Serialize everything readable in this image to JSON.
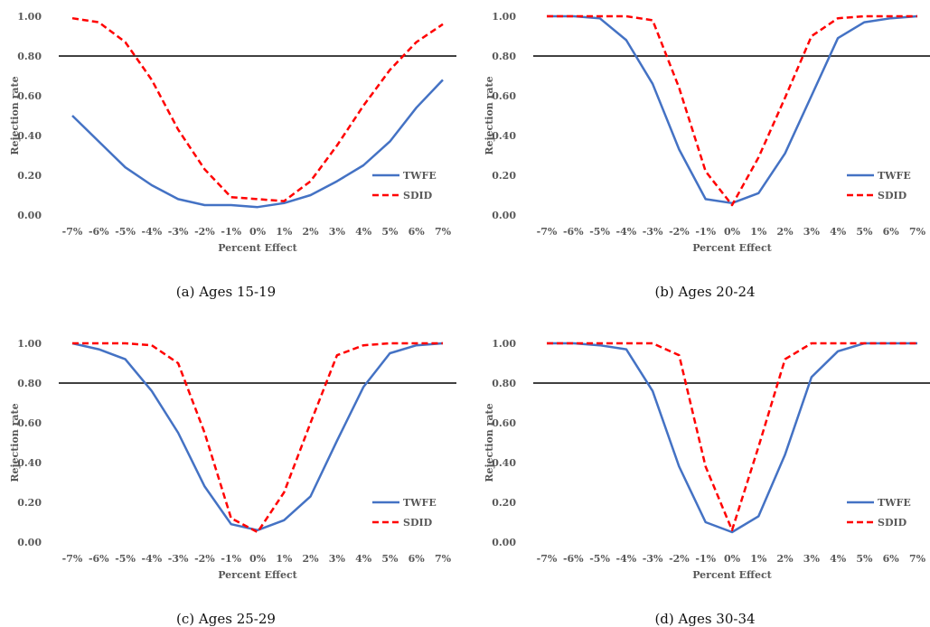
{
  "colors": {
    "twfe": "#4472C4",
    "sdid": "#FF0000",
    "threshold": "#000000",
    "tick_text": "#595959"
  },
  "chart_data": [
    {
      "type": "line",
      "caption": "(a) Ages 15-19",
      "xlabel": "Percent Effect",
      "ylabel": "Rejection rate",
      "ylim": [
        0,
        1.0
      ],
      "y_ticks": [
        "0.00",
        "0.20",
        "0.40",
        "0.60",
        "0.80",
        "1.00"
      ],
      "categories": [
        "-7%",
        "-6%",
        "-5%",
        "-4%",
        "-3%",
        "-2%",
        "-1%",
        "0%",
        "1%",
        "2%",
        "3%",
        "4%",
        "5%",
        "6%",
        "7%"
      ],
      "threshold": [
        0.8,
        0.8
      ],
      "legend_position": "right",
      "series": [
        {
          "name": "TWFE",
          "style": "solid",
          "values": [
            0.5,
            0.37,
            0.24,
            0.15,
            0.08,
            0.05,
            0.05,
            0.04,
            0.06,
            0.1,
            0.17,
            0.25,
            0.37,
            0.54,
            0.68
          ]
        },
        {
          "name": "SDID",
          "style": "dashed",
          "values": [
            0.99,
            0.97,
            0.87,
            0.68,
            0.43,
            0.23,
            0.09,
            0.08,
            0.07,
            0.17,
            0.35,
            0.55,
            0.73,
            0.87,
            0.96
          ]
        }
      ]
    },
    {
      "type": "line",
      "caption": "(b) Ages 20-24",
      "xlabel": "Percent Effect",
      "ylabel": "Rejection rate",
      "ylim": [
        0,
        1.0
      ],
      "y_ticks": [
        "0.00",
        "0.20",
        "0.40",
        "0.60",
        "0.80",
        "1.00"
      ],
      "categories": [
        "-7%",
        "-6%",
        "-5%",
        "-4%",
        "-3%",
        "-2%",
        "-1%",
        "0%",
        "1%",
        "2%",
        "3%",
        "4%",
        "5%",
        "6%",
        "7%"
      ],
      "threshold": [
        0.8,
        0.8
      ],
      "legend_position": "right",
      "series": [
        {
          "name": "TWFE",
          "style": "solid",
          "values": [
            1.0,
            1.0,
            0.99,
            0.88,
            0.66,
            0.33,
            0.08,
            0.06,
            0.11,
            0.31,
            0.6,
            0.89,
            0.97,
            0.99,
            1.0
          ]
        },
        {
          "name": "SDID",
          "style": "dashed",
          "values": [
            1.0,
            1.0,
            1.0,
            1.0,
            0.98,
            0.64,
            0.22,
            0.05,
            0.29,
            0.59,
            0.9,
            0.99,
            1.0,
            1.0,
            1.0
          ]
        }
      ]
    },
    {
      "type": "line",
      "caption": "(c) Ages 25-29",
      "xlabel": "Percent Effect",
      "ylabel": "Rejection rate",
      "ylim": [
        0,
        1.0
      ],
      "y_ticks": [
        "0.00",
        "0.20",
        "0.40",
        "0.60",
        "0.80",
        "1.00"
      ],
      "categories": [
        "-7%",
        "-6%",
        "-5%",
        "-4%",
        "-3%",
        "-2%",
        "-1%",
        "0%",
        "1%",
        "2%",
        "3%",
        "4%",
        "5%",
        "6%",
        "7%"
      ],
      "threshold": [
        0.8,
        0.8
      ],
      "legend_position": "right",
      "series": [
        {
          "name": "TWFE",
          "style": "solid",
          "values": [
            1.0,
            0.97,
            0.92,
            0.76,
            0.55,
            0.28,
            0.09,
            0.06,
            0.11,
            0.23,
            0.51,
            0.78,
            0.95,
            0.99,
            1.0
          ]
        },
        {
          "name": "SDID",
          "style": "dashed",
          "values": [
            1.0,
            1.0,
            1.0,
            0.99,
            0.9,
            0.55,
            0.12,
            0.05,
            0.25,
            0.6,
            0.94,
            0.99,
            1.0,
            1.0,
            1.0
          ]
        }
      ]
    },
    {
      "type": "line",
      "caption": "(d) Ages 30-34",
      "xlabel": "Percent Effect",
      "ylabel": "Rejection rate",
      "ylim": [
        0,
        1.0
      ],
      "y_ticks": [
        "0.00",
        "0.20",
        "0.40",
        "0.60",
        "0.80",
        "1.00"
      ],
      "categories": [
        "-7%",
        "-6%",
        "-5%",
        "-4%",
        "-3%",
        "-2%",
        "-1%",
        "0%",
        "1%",
        "2%",
        "3%",
        "4%",
        "5%",
        "6%",
        "7%"
      ],
      "threshold": [
        0.8,
        0.8
      ],
      "legend_position": "right",
      "series": [
        {
          "name": "TWFE",
          "style": "solid",
          "values": [
            1.0,
            1.0,
            0.99,
            0.97,
            0.76,
            0.38,
            0.1,
            0.05,
            0.13,
            0.44,
            0.83,
            0.96,
            1.0,
            1.0,
            1.0
          ]
        },
        {
          "name": "SDID",
          "style": "dashed",
          "values": [
            1.0,
            1.0,
            1.0,
            1.0,
            1.0,
            0.94,
            0.38,
            0.06,
            0.48,
            0.92,
            1.0,
            1.0,
            1.0,
            1.0,
            1.0
          ]
        }
      ]
    }
  ]
}
